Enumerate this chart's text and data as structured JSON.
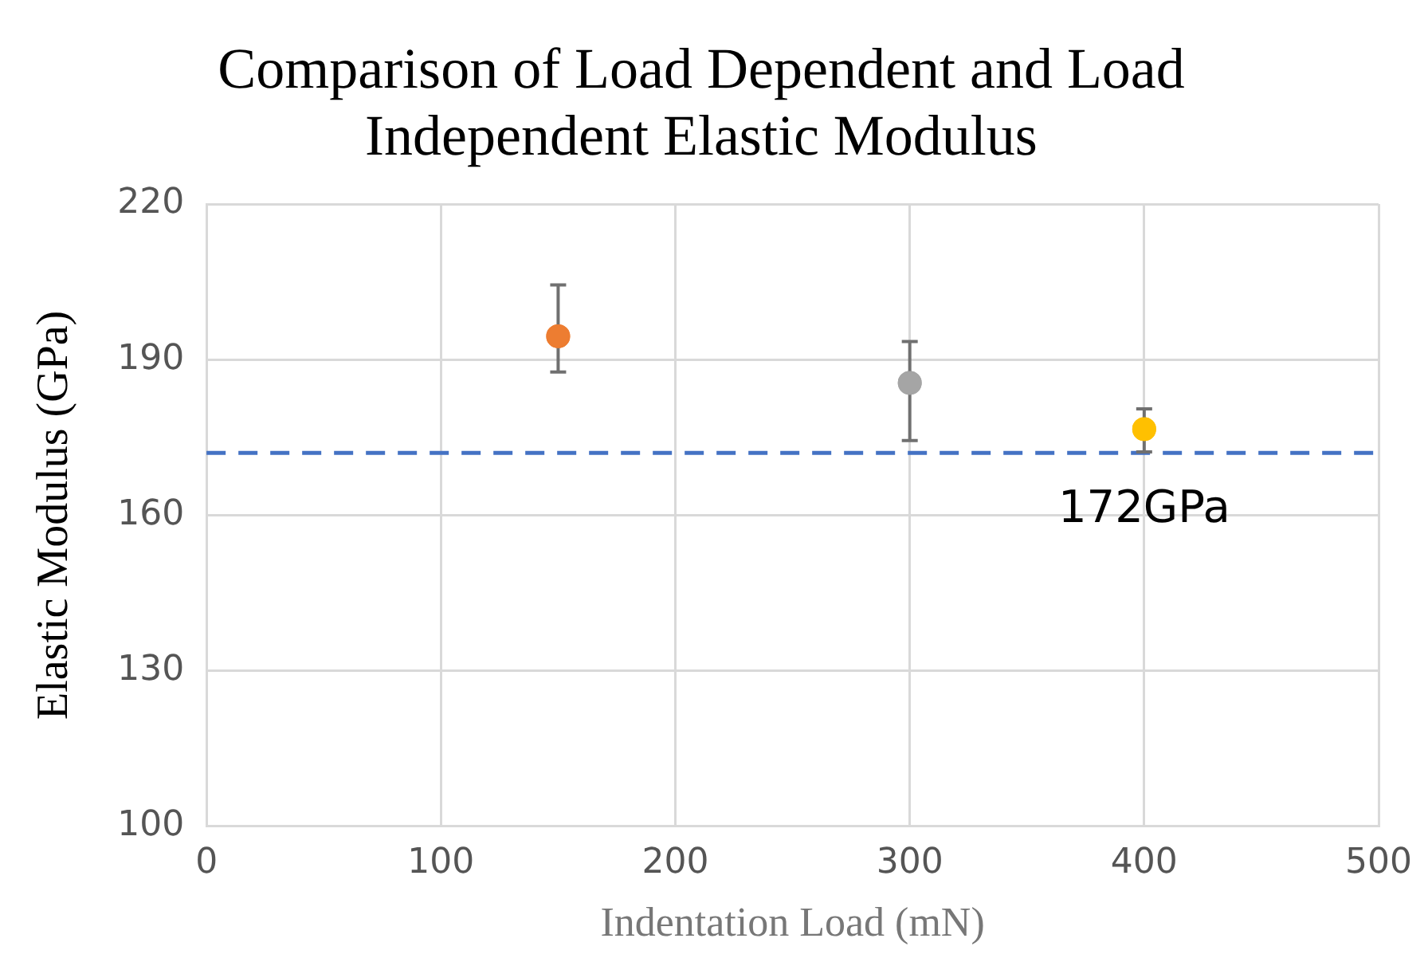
{
  "chart_data": {
    "type": "scatter",
    "title": "Comparison of Load Dependent and Load Independent Elastic Modulus",
    "xlabel": "Indentation Load (mN)",
    "ylabel": "Elastic Modulus (GPa)",
    "x": [
      150,
      300,
      400
    ],
    "values": [
      194.5,
      185.5,
      176.6
    ],
    "colors": [
      "#ed7d31",
      "#a5a5a5",
      "#ffc000"
    ],
    "errors": [
      [
        187.6,
        204.4
      ],
      [
        174.4,
        193.5
      ],
      [
        172.2,
        180.5
      ]
    ],
    "xlim": [
      0,
      500
    ],
    "xticks": [
      0,
      100,
      200,
      300,
      400,
      500
    ],
    "ylim": [
      100,
      220
    ],
    "yticks": [
      100,
      130,
      160,
      190,
      220
    ],
    "grid": true,
    "marker": "circle",
    "legend": false,
    "ref_lines": [
      {
        "axis": "y",
        "value": 172,
        "label": "172GPa",
        "color": "#4472c4",
        "line_style": "dashed"
      }
    ]
  }
}
